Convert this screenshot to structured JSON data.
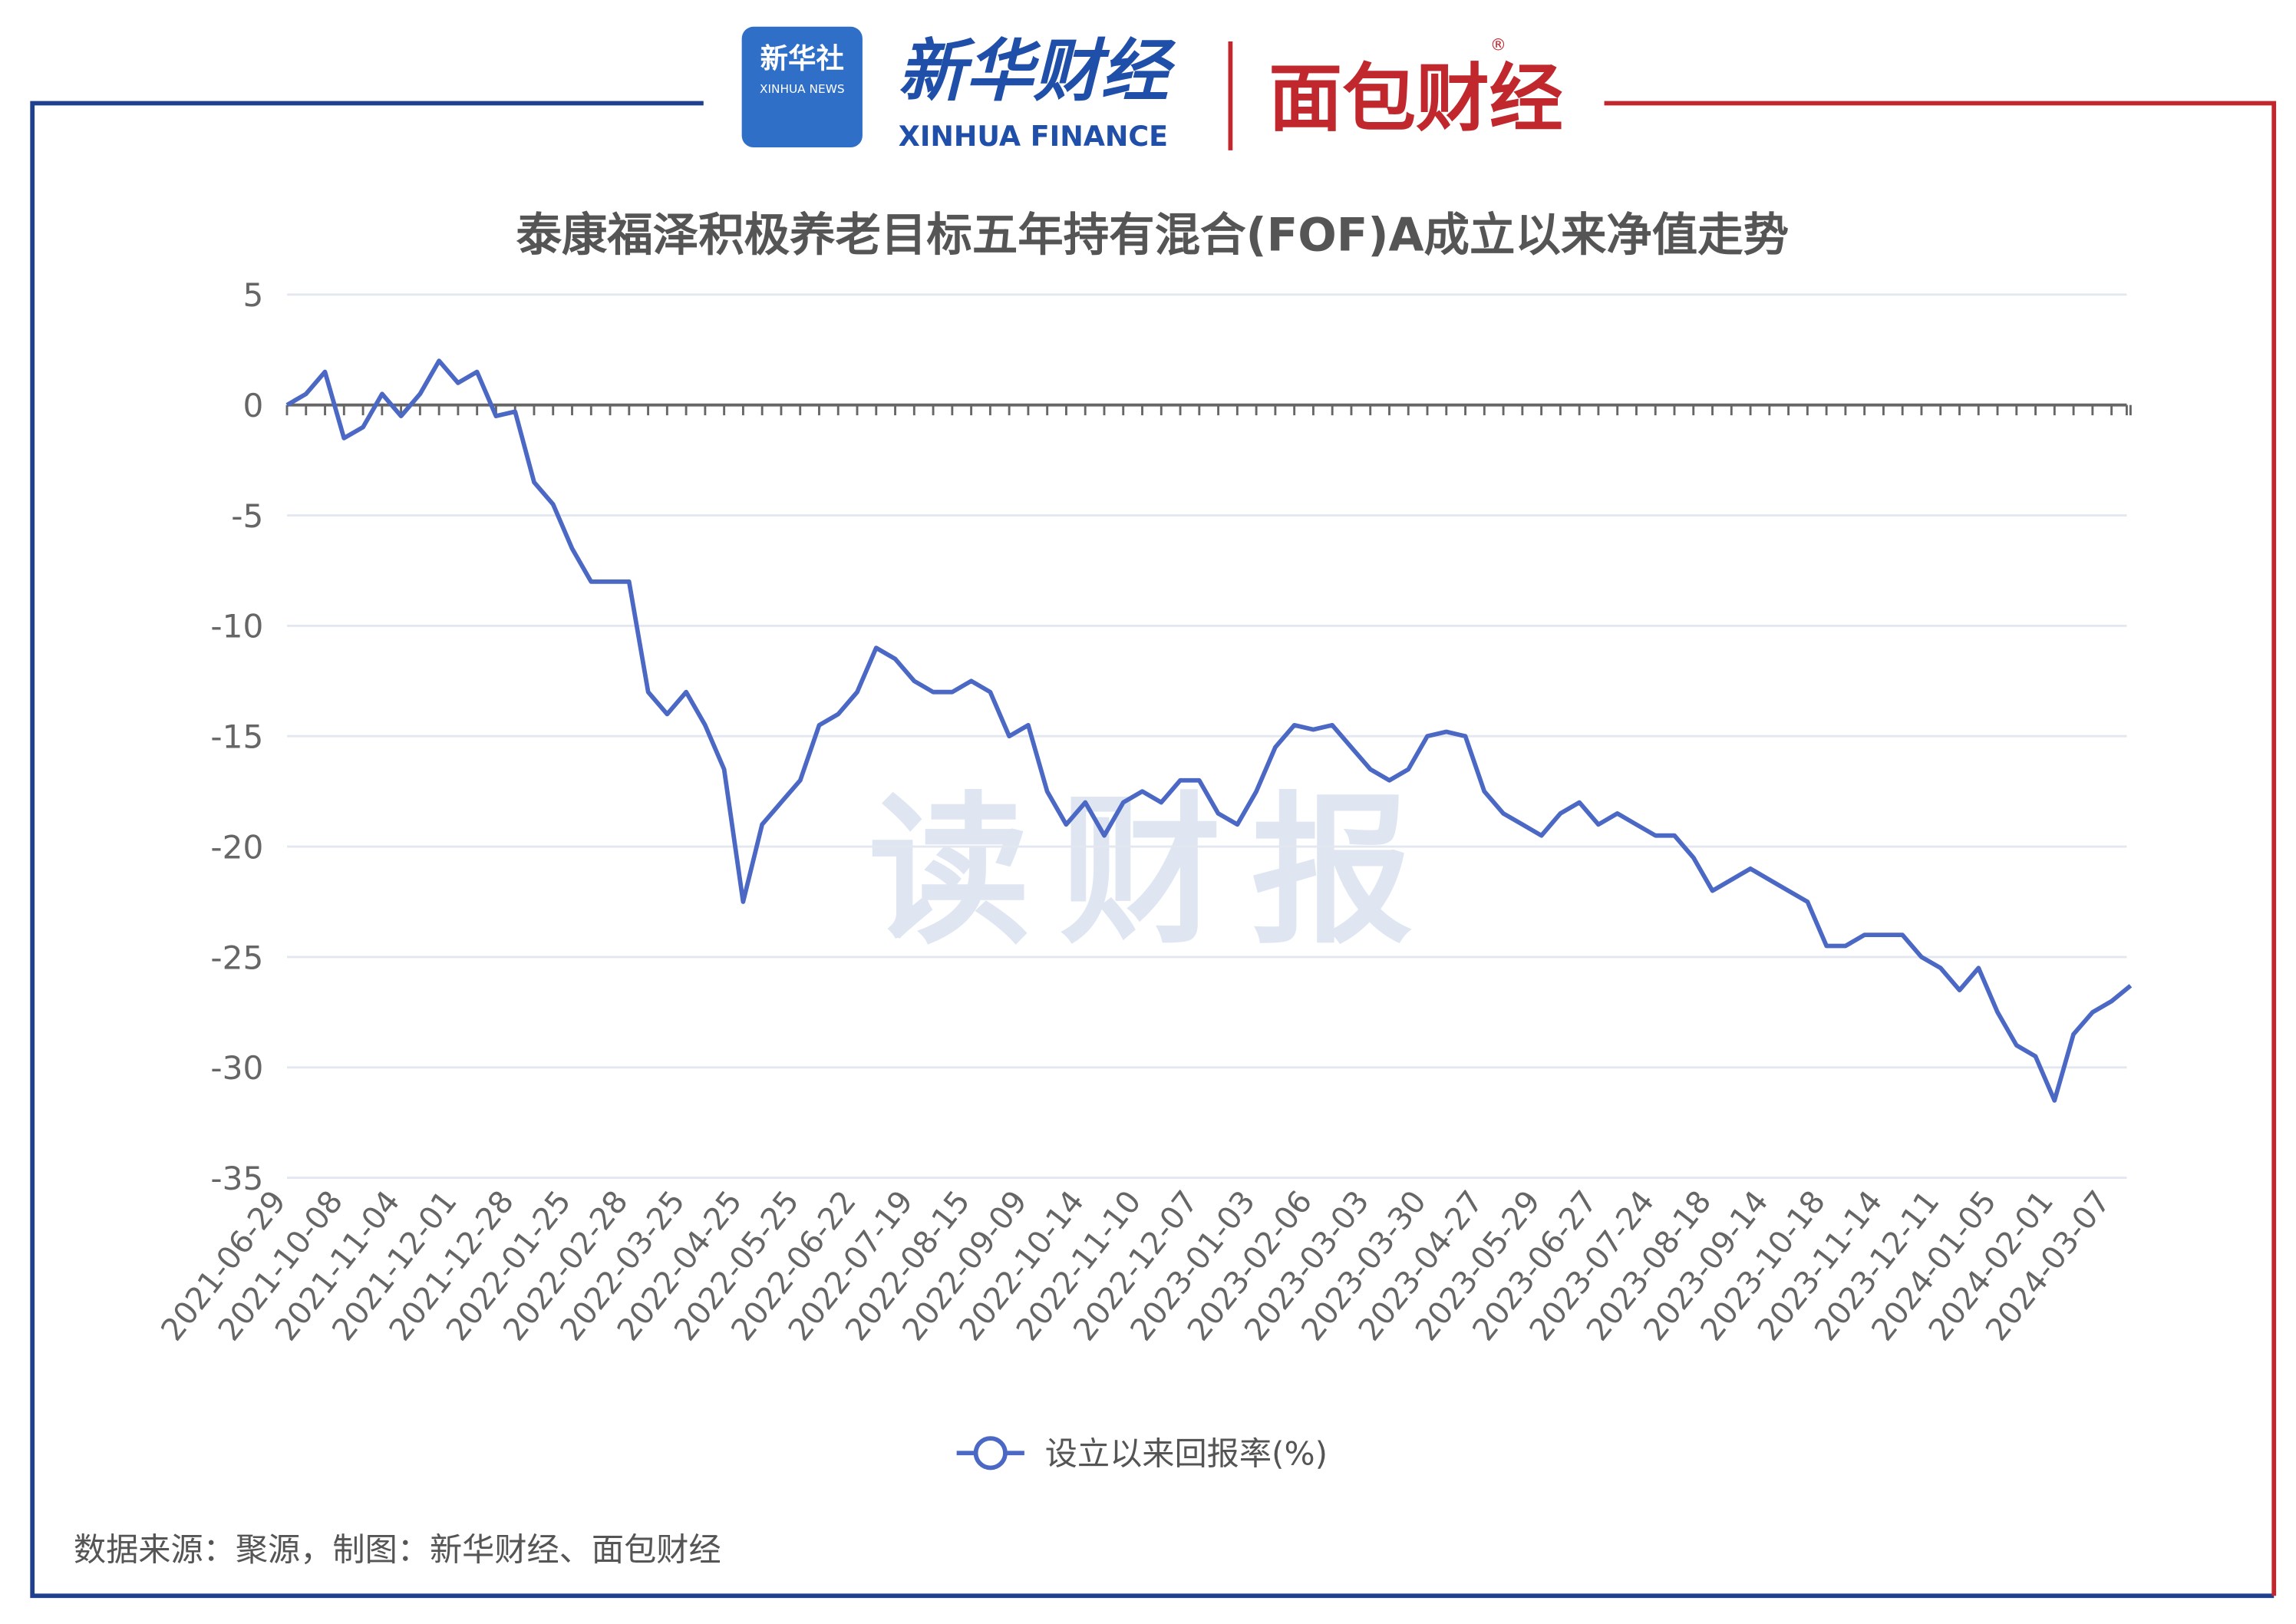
{
  "header": {
    "logo_badge": "新华社",
    "logo_badge_sub": "XINHUA NEWS",
    "brand_cn": "新华财经",
    "brand_en": "XINHUA FINANCE",
    "partner": "面包财经",
    "registered": "®"
  },
  "watermark": "读财报",
  "source": "数据来源：聚源，制图：新华财经、面包财经",
  "chart_data": {
    "type": "line",
    "title": "泰康福泽积极养老目标五年持有混合(FOF)A成立以来净值走势",
    "categories": [
      "2021-06-29",
      null,
      null,
      "2021-10-08",
      null,
      null,
      "2021-11-04",
      null,
      null,
      "2021-12-01",
      null,
      null,
      "2021-12-28",
      null,
      null,
      "2022-01-25",
      null,
      null,
      "2022-02-28",
      null,
      null,
      "2022-03-25",
      null,
      null,
      "2022-04-25",
      null,
      null,
      "2022-05-25",
      null,
      null,
      "2022-06-22",
      null,
      null,
      "2022-07-19",
      null,
      null,
      "2022-08-15",
      null,
      null,
      "2022-09-09",
      null,
      null,
      "2022-10-14",
      null,
      null,
      "2022-11-10",
      null,
      null,
      "2022-12-07",
      null,
      null,
      "2023-01-03",
      null,
      null,
      "2023-02-06",
      null,
      null,
      "2023-03-03",
      null,
      null,
      "2023-03-30",
      null,
      null,
      "2023-04-27",
      null,
      null,
      "2023-05-29",
      null,
      null,
      "2023-06-27",
      null,
      null,
      "2023-07-24",
      null,
      null,
      "2023-08-18",
      null,
      null,
      "2023-09-14",
      null,
      null,
      "2023-10-18",
      null,
      null,
      "2023-11-14",
      null,
      null,
      "2023-12-11",
      null,
      null,
      "2024-01-05",
      null,
      null,
      "2024-02-01",
      null,
      null,
      "2024-03-07",
      null
    ],
    "series": [
      {
        "name": "设立以来回报率(%)",
        "color": "#4a68c4",
        "values": [
          0,
          0.5,
          1.5,
          -1.5,
          -1,
          0.5,
          -0.5,
          0.5,
          2,
          1,
          1.5,
          -0.5,
          -0.3,
          -3.5,
          -4.5,
          -6.5,
          -8,
          -8,
          -8,
          -13,
          -14,
          -13,
          -14.5,
          -16.5,
          -22.5,
          -19,
          -18,
          -17,
          -14.5,
          -14,
          -13,
          -11,
          -11.5,
          -12.5,
          -13,
          -13,
          -12.5,
          -13,
          -15,
          -14.5,
          -17.5,
          -19,
          -18,
          -19.5,
          -18,
          -17.5,
          -18,
          -17,
          -17,
          -18.5,
          -19,
          -17.5,
          -15.5,
          -14.5,
          -14.7,
          -14.5,
          -15.5,
          -16.5,
          -17,
          -16.5,
          -15,
          -14.8,
          -15,
          -17.5,
          -18.5,
          -19,
          -19.5,
          -18.5,
          -18,
          -19,
          -18.5,
          -19,
          -19.5,
          -19.5,
          -20.5,
          -22,
          -21.5,
          -21,
          -21.5,
          -22,
          -22.5,
          -24.5,
          -24.5,
          -24,
          -24,
          -24,
          -25,
          -25.5,
          -26.5,
          -25.5,
          -27.5,
          -29,
          -29.5,
          -31.5,
          -28.5,
          -27.5,
          -27,
          -26.3
        ]
      }
    ],
    "ylim": [
      -35,
      5
    ],
    "yticks": [
      -35,
      -30,
      -25,
      -20,
      -15,
      -10,
      -5,
      0,
      5
    ],
    "grid": true,
    "legend": "bottom"
  }
}
